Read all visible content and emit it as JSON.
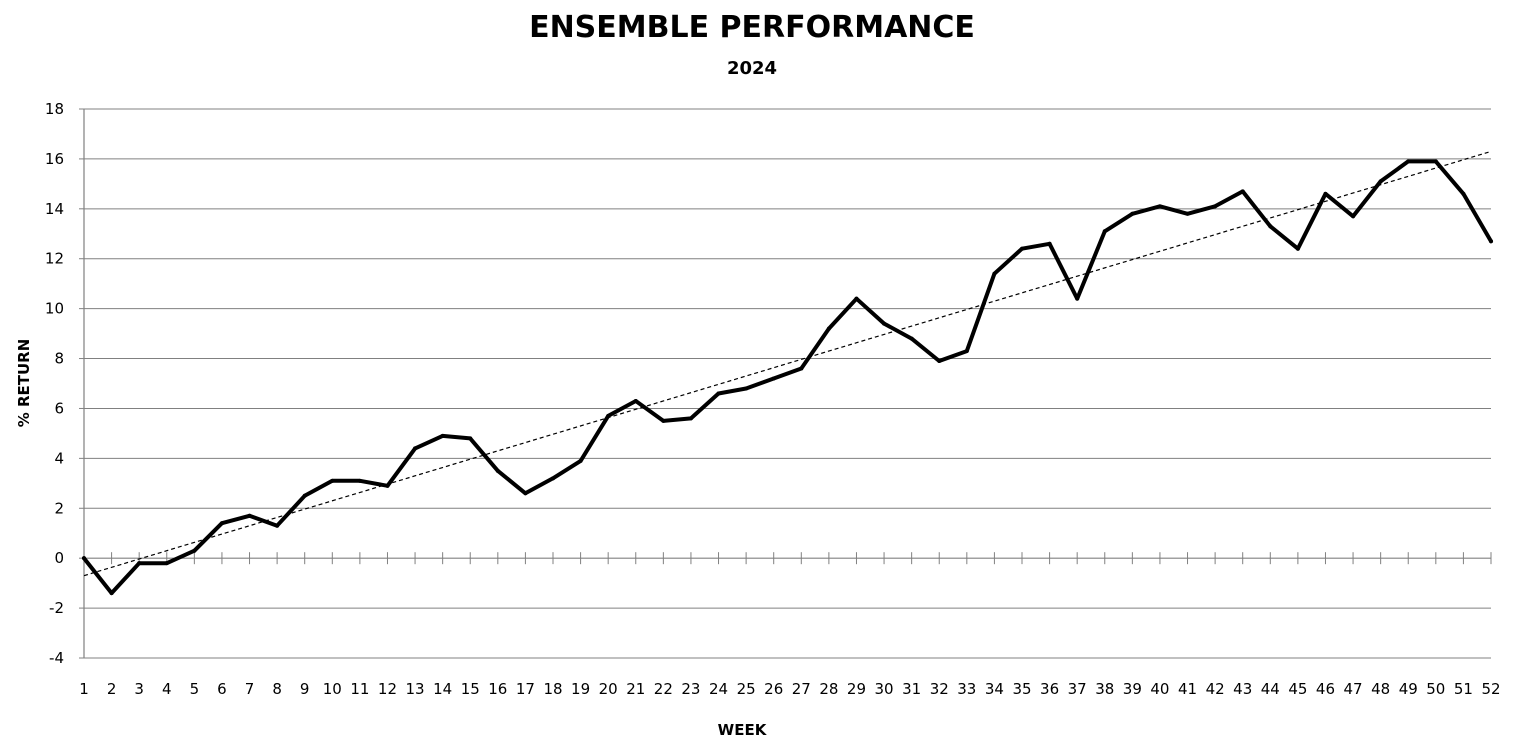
{
  "chart_data": {
    "type": "line",
    "title": "ENSEMBLE PERFORMANCE",
    "subtitle": "2024",
    "xlabel": "WEEK",
    "ylabel": "% RETURN",
    "ylim": [
      -4,
      18
    ],
    "yticks": [
      18,
      16,
      14,
      12,
      10,
      8,
      6,
      4,
      2,
      0,
      -2,
      -4
    ],
    "grid": true,
    "legend": "none",
    "x": [
      1,
      2,
      3,
      4,
      5,
      6,
      7,
      8,
      9,
      10,
      11,
      12,
      13,
      14,
      15,
      16,
      17,
      18,
      19,
      20,
      21,
      22,
      23,
      24,
      25,
      26,
      27,
      28,
      29,
      30,
      31,
      32,
      33,
      34,
      35,
      36,
      37,
      38,
      39,
      40,
      41,
      42,
      43,
      44,
      45,
      46,
      47,
      48,
      49,
      50,
      51,
      52
    ],
    "xtick_labels": [
      "1",
      "2",
      "3",
      "4",
      "5",
      "6",
      "7",
      "8",
      "9",
      "10",
      "11",
      "12",
      "13",
      "14",
      "15",
      "16",
      "17",
      "18",
      "19",
      "20",
      "21",
      "22",
      "23",
      "24",
      "25",
      "26",
      "27",
      "28",
      "29",
      "30",
      "31",
      "32",
      "33",
      "34",
      "35",
      "36",
      "37",
      "38",
      "39",
      "40",
      "41",
      "42",
      "43",
      "44",
      "45",
      "46",
      "47",
      "48",
      "49",
      "50",
      "51",
      "52"
    ],
    "series": [
      {
        "values": [
          0.0,
          -1.4,
          -0.2,
          -0.2,
          0.3,
          1.4,
          1.7,
          1.3,
          2.5,
          3.1,
          3.1,
          2.9,
          4.4,
          4.9,
          4.8,
          3.5,
          2.6,
          3.2,
          3.9,
          5.7,
          6.3,
          5.5,
          5.6,
          6.6,
          6.8,
          7.2,
          7.6,
          9.2,
          10.4,
          9.4,
          8.8,
          7.9,
          8.3,
          11.4,
          12.4,
          12.6,
          10.4,
          13.1,
          13.8,
          14.1,
          13.8,
          14.1,
          14.7,
          13.3,
          12.4,
          14.6,
          13.7,
          15.1,
          15.9,
          15.9,
          14.6,
          12.7
        ],
        "color": "#000000"
      }
    ],
    "trendline": {
      "style": "dashed",
      "start_value": -0.7,
      "end_value": 16.3
    }
  }
}
